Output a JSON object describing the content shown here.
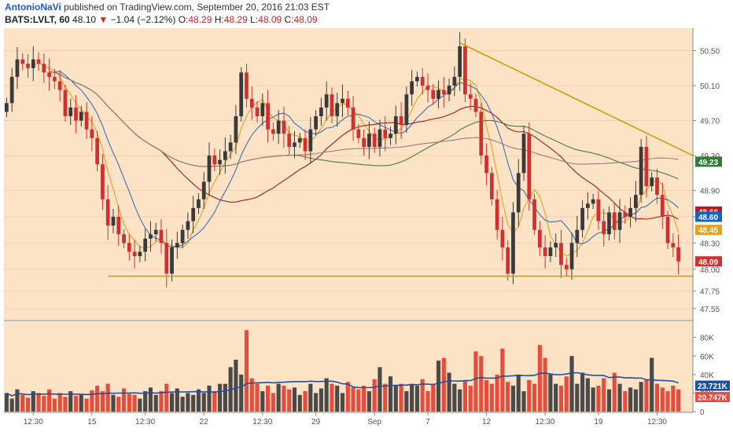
{
  "header": {
    "author": "AntonioNaVi",
    "published_text": "published on TradingView.com, September 20, 2016 21:03 EST",
    "symbol": "BATS:LVLT, 60",
    "last": "48.10",
    "change_arrow": "▼",
    "change": "−1.04 (−2.12%)",
    "o_label": "O:",
    "o_value": "48.29",
    "h_label": "H:",
    "h_value": "48.29",
    "l_label": "L:",
    "l_value": "48.09",
    "c_label": "C:",
    "c_value": "48.09"
  },
  "colors": {
    "background": "#fde3c6",
    "up": "#3a3a3a",
    "down": "#d32f2f",
    "vol_up": "#4a4a4a",
    "vol_down": "#e74c3c",
    "ma_orange": "#e3a21a",
    "ma_blue": "#3a6fb0",
    "ma_darkred": "#9b1b1b",
    "ma_green": "#4b7a3a",
    "ma_gray": "#9c7b7b",
    "trendline": "#c8a000"
  },
  "chart_data": [
    {
      "type": "candlestick",
      "ylim": [
        47.45,
        50.72
      ],
      "yticks": [
        47.55,
        47.75,
        48.0,
        48.3,
        48.6,
        48.9,
        49.3,
        49.7,
        50.1,
        50.5
      ],
      "xtick_labels": [
        "12:30",
        "15",
        "12:30",
        "22",
        "12:30",
        "29",
        "Sep",
        "7",
        "12",
        "12:30",
        "19",
        "12:30"
      ],
      "price_tags": [
        {
          "value": 49.23,
          "label": "49.23",
          "color": "#2e7d32"
        },
        {
          "value": 48.66,
          "label": "48.66",
          "color": "#b71c1c"
        },
        {
          "value": 48.6,
          "label": "48.60",
          "color": "#1565c0"
        },
        {
          "value": 48.45,
          "label": "48.45",
          "color": "#e3a21a"
        },
        {
          "value": 48.09,
          "label": "48.09",
          "color": "#d32f2f"
        }
      ],
      "closes": [
        49.9,
        50.2,
        50.4,
        50.35,
        50.3,
        50.4,
        50.35,
        50.25,
        50.2,
        50.15,
        50.05,
        49.75,
        49.85,
        49.7,
        49.8,
        49.6,
        49.5,
        49.2,
        48.8,
        48.5,
        48.6,
        48.4,
        48.3,
        48.2,
        48.15,
        48.2,
        48.35,
        48.4,
        48.45,
        48.3,
        47.95,
        48.25,
        48.3,
        48.45,
        48.55,
        48.7,
        48.8,
        49.0,
        49.3,
        49.2,
        49.25,
        49.35,
        49.45,
        49.75,
        50.25,
        49.95,
        49.85,
        49.75,
        49.9,
        49.6,
        49.55,
        49.7,
        49.55,
        49.4,
        49.45,
        49.5,
        49.35,
        49.6,
        49.75,
        49.85,
        50.0,
        49.75,
        49.9,
        49.95,
        49.85,
        49.6,
        49.5,
        49.4,
        49.55,
        49.4,
        49.6,
        49.5,
        49.55,
        49.75,
        49.65,
        50.0,
        50.15,
        50.2,
        50.1,
        50.05,
        49.95,
        50.05,
        50.0,
        50.1,
        50.2,
        50.55,
        50.0,
        49.95,
        49.8,
        49.3,
        49.1,
        48.8,
        48.45,
        48.25,
        47.95,
        48.65,
        49.1,
        49.55,
        48.8,
        48.45,
        48.25,
        48.15,
        48.25,
        48.3,
        48.05,
        48.0,
        48.3,
        48.45,
        48.7,
        48.75,
        48.8,
        48.55,
        48.4,
        48.65,
        48.45,
        48.65,
        48.6,
        48.7,
        48.85,
        49.4,
        48.95,
        49.05,
        48.85,
        48.6,
        48.3,
        48.25,
        48.09
      ],
      "volume_ylim": [
        0,
        95
      ],
      "volume_ticks": [
        {
          "value": 0,
          "label": "0"
        },
        {
          "value": 20,
          "label": "20K"
        },
        {
          "value": 40,
          "label": "40K"
        },
        {
          "value": 60,
          "label": "60K"
        },
        {
          "value": 80,
          "label": "80K"
        }
      ],
      "volume_tags": [
        {
          "value": 23.721,
          "label": "23.721K",
          "color": "#1e4fa0"
        },
        {
          "value": 20.747,
          "label": "20.747K",
          "color": "#e74c3c"
        }
      ],
      "volumes": [
        20,
        14,
        24,
        18,
        15,
        22,
        20,
        17,
        24,
        14,
        20,
        16,
        22,
        17,
        18,
        14,
        23,
        28,
        22,
        30,
        18,
        16,
        25,
        19,
        18,
        14,
        22,
        26,
        18,
        22,
        30,
        20,
        25,
        16,
        20,
        18,
        24,
        20,
        28,
        22,
        30,
        30,
        48,
        56,
        40,
        88,
        36,
        30,
        22,
        28,
        20,
        30,
        28,
        24,
        26,
        18,
        22,
        30,
        20,
        25,
        36,
        30,
        28,
        20,
        32,
        26,
        24,
        28,
        22,
        35,
        48,
        30,
        38,
        28,
        30,
        22,
        30,
        28,
        35,
        22,
        30,
        55,
        58,
        42,
        30,
        24,
        34,
        28,
        65,
        60,
        34,
        30,
        40,
        68,
        32,
        28,
        40,
        22,
        34,
        30,
        72,
        58,
        40,
        30,
        28,
        38,
        60,
        30,
        42,
        36,
        26,
        28,
        36,
        24,
        42,
        30,
        22,
        26,
        24,
        32,
        34,
        58,
        30,
        26,
        22,
        28,
        24
      ]
    }
  ]
}
